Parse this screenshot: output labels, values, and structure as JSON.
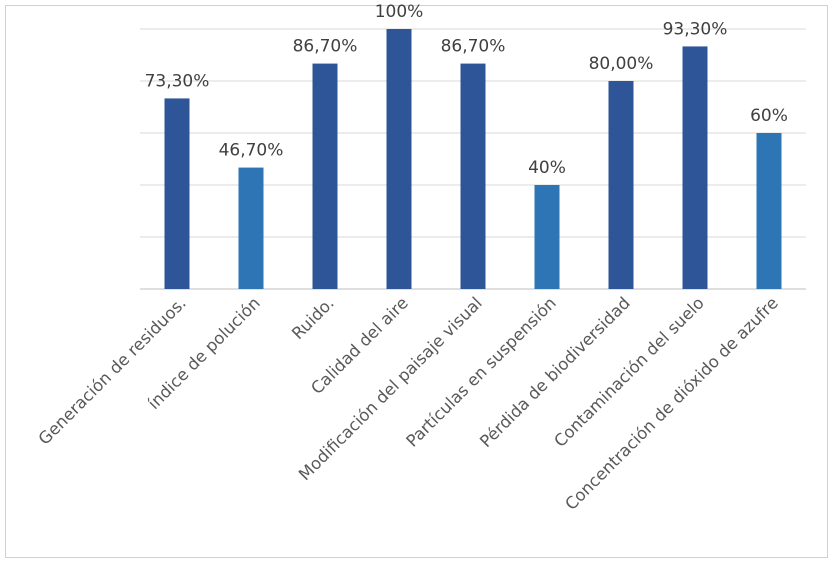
{
  "chart_data": {
    "type": "bar",
    "categories": [
      "Generación de residuos.",
      "índice de polución",
      "Ruido.",
      "Calidad del aire",
      "Modificación del paisaje visual",
      "Partículas en suspensión",
      "Pérdida de biodiversidad",
      "Contaminación del suelo",
      "Concentración de dióxido de azufre"
    ],
    "values": [
      73.3,
      46.7,
      86.7,
      100,
      86.7,
      40,
      80,
      93.3,
      60
    ],
    "data_labels": [
      "73,30%",
      "46,70%",
      "86,70%",
      "100%",
      "86,70%",
      "40%",
      "80,00%",
      "93,30%",
      "60%"
    ],
    "bar_colors": [
      "#2e5597",
      "#2e75b6",
      "#2e5597",
      "#2e5597",
      "#2e5597",
      "#2e75b6",
      "#2e5597",
      "#2e5597",
      "#2e75b6"
    ],
    "title": "",
    "xlabel": "",
    "ylabel": "",
    "ylim": [
      0,
      100
    ],
    "gridlines": [
      0,
      20,
      40,
      60,
      80,
      100
    ],
    "grid": true,
    "legend": "none"
  }
}
